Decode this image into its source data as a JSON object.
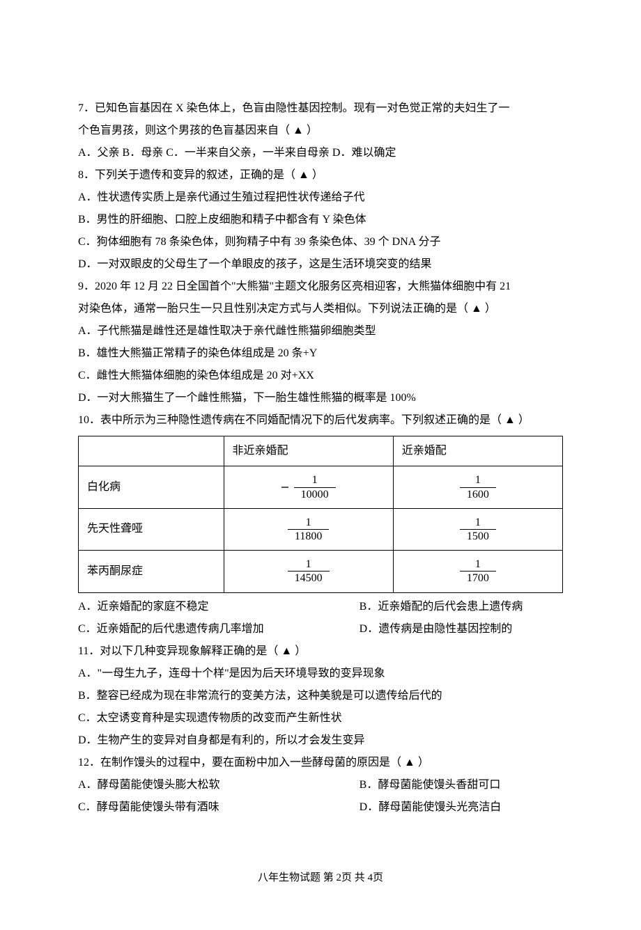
{
  "q7": {
    "stem_a": "7．已知色盲基因在 X 染色体上，色盲由隐性基因控制。现有一对色觉正常的夫妇生了一",
    "stem_b": "个色盲男孩，则这个男孩的色盲基因来自（  ▲  ）",
    "options": "A．父亲  B．母亲  C．一半来自父亲，一半来自母亲  D．难以确定"
  },
  "q8": {
    "stem": "8．下列关于遗传和变异的叙述，正确的是（  ▲  ）",
    "A": "A．性状遗传实质上是亲代通过生殖过程把性状传递给子代",
    "B": "B．男性的肝细胞、口腔上皮细胞和精子中都含有 Y 染色体",
    "C": "C．狗体细胞有 78 条染色体，则狗精子中有 39 条染色体、39 个 DNA 分子",
    "D": "D．一对双眼皮的父母生了一个单眼皮的孩子，这是生活环境突变的结果"
  },
  "q9": {
    "stem_a": "9．2020 年 12 月 22 日全国首个\"大熊猫\"主题文化服务区亮相迎客，大熊猫体细胞中有 21",
    "stem_b": "对染色体，通常一胎只生一只且性别决定方式与人类相似。下列说法正确的是（  ▲  ）",
    "A": "A．子代熊猫是雌性还是雄性取决于亲代雌性熊猫卵细胞类型",
    "B": "B．雄性大熊猫正常精子的染色体组成是 20 条+Y",
    "C": "C．雌性大熊猫体细胞的染色体组成是 20 对+XX",
    "D": "D．一对大熊猫生了一个雌性熊猫，下一胎生雄性熊猫的概率是 100%"
  },
  "q10": {
    "stem": "10．表中所示为三种隐性遗传病在不同婚配情况下的后代发病率。下列叙述正确的是（  ▲  ）",
    "table": {
      "headers": [
        "",
        "非近亲婚配",
        "近亲婚配"
      ],
      "rows": [
        {
          "label": "白化病",
          "non": {
            "num": "1",
            "den": "10000"
          },
          "close": {
            "num": "1",
            "den": "1600"
          }
        },
        {
          "label": "先天性聋哑",
          "non": {
            "num": "1",
            "den": "11800"
          },
          "close": {
            "num": "1",
            "den": "1500"
          }
        },
        {
          "label": "苯丙酮尿症",
          "non": {
            "num": "1",
            "den": "14500"
          },
          "close": {
            "num": "1",
            "den": "1700"
          }
        }
      ]
    },
    "A": "A．近亲婚配的家庭不稳定",
    "B": "B．近亲婚配的后代会患上遗传病",
    "C": "C．近亲婚配的后代患遗传病几率增加",
    "D": "D．遗传病是由隐性基因控制的"
  },
  "q11": {
    "stem": "11．对以下几种变异现象解释正确的是（  ▲  ）",
    "A": "A．\"一母生九子，连母十个样\"是因为后天环境导致的变异现象",
    "B": "B．整容已经成为现在非常流行的变美方法，这种美貌是可以遗传给后代的",
    "C": "C．太空诱变育种是实现遗传物质的改变而产生新性状",
    "D": "D．生物产生的变异对自身都是有利的，所以才会发生变异"
  },
  "q12": {
    "stem": "12．在制作馒头的过程中，要在面粉中加入一些酵母菌的原因是（  ▲  ）",
    "A": "A．酵母菌能使馒头膨大松软",
    "B": "B．酵母菌能使馒头香甜可口",
    "C": "C．酵母菌能使馒头带有酒味",
    "D": "D．酵母菌能使馒头光亮洁白"
  },
  "footer": "八年生物试题  第 2页  共 4页"
}
